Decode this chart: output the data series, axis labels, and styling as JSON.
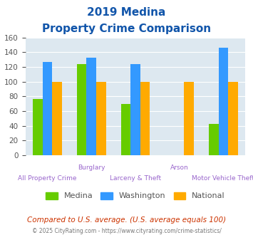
{
  "title_line1": "2019 Medina",
  "title_line2": "Property Crime Comparison",
  "medina": [
    76,
    124,
    70,
    0,
    42
  ],
  "washington": [
    127,
    133,
    124,
    0,
    146
  ],
  "national": [
    100,
    100,
    100,
    100,
    100
  ],
  "color_medina": "#66cc00",
  "color_washington": "#3399ff",
  "color_national": "#ffaa00",
  "ylim": [
    0,
    160
  ],
  "yticks": [
    0,
    20,
    40,
    60,
    80,
    100,
    120,
    140,
    160
  ],
  "bg_color": "#dde8f0",
  "legend_labels": [
    "Medina",
    "Washington",
    "National"
  ],
  "top_labels": [
    "",
    "Burglary",
    "",
    "Arson",
    ""
  ],
  "bottom_labels": [
    "All Property Crime",
    "",
    "Larceny & Theft",
    "",
    "Motor Vehicle Theft"
  ],
  "footnote1": "Compared to U.S. average. (U.S. average equals 100)",
  "footnote2": "© 2025 CityRating.com - https://www.cityrating.com/crime-statistics/",
  "title_color": "#1155aa",
  "label_color": "#9966cc",
  "footnote1_color": "#cc3300",
  "footnote2_color": "#777777"
}
